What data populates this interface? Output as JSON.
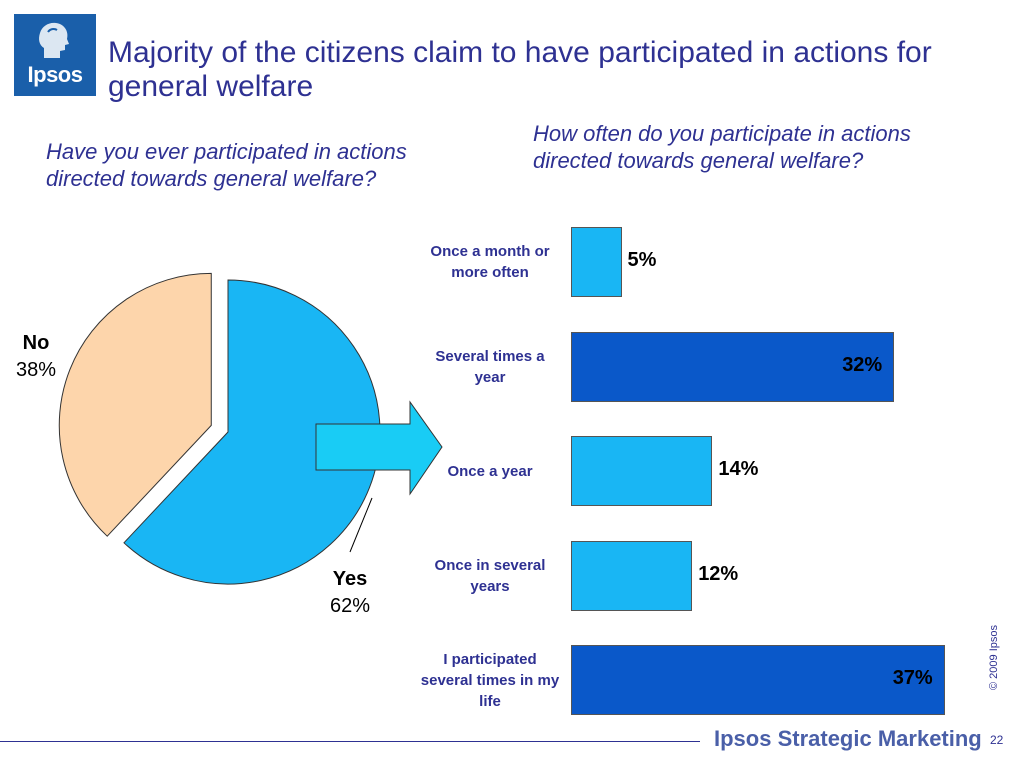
{
  "logo": {
    "text": "Ipsos"
  },
  "title": "Majority of the citizens claim to have participated in actions for general welfare",
  "left_question": "Have you ever participated in actions directed towards general welfare?",
  "right_question": "How often do you participate in actions directed towards general welfare?",
  "colors": {
    "title": "#2e3192",
    "pie_yes": "#19b6f4",
    "pie_no": "#fdd5ab",
    "bar_light": "#19b6f4",
    "bar_dark": "#0a58c9",
    "arrow": "#19ccf5"
  },
  "chart_data": [
    {
      "type": "pie",
      "slices": [
        {
          "label": "Yes",
          "value": 62,
          "value_label": "62%"
        },
        {
          "label": "No",
          "value": 38,
          "value_label": "38%"
        }
      ]
    },
    {
      "type": "bar",
      "orientation": "horizontal",
      "categories": [
        "Once a month or more often",
        "Several times a year",
        "Once a year",
        "Once in several years",
        "I participated several times in my life"
      ],
      "values": [
        5,
        32,
        14,
        12,
        37
      ],
      "value_labels": [
        "5%",
        "32%",
        "14%",
        "12%",
        "37%"
      ],
      "bar_colors": [
        "#19b6f4",
        "#0a58c9",
        "#19b6f4",
        "#19b6f4",
        "#0a58c9"
      ]
    }
  ],
  "footer": {
    "copyright": "© 2009 Ipsos",
    "brand": "Ipsos Strategic Marketing",
    "page_number": "22"
  }
}
